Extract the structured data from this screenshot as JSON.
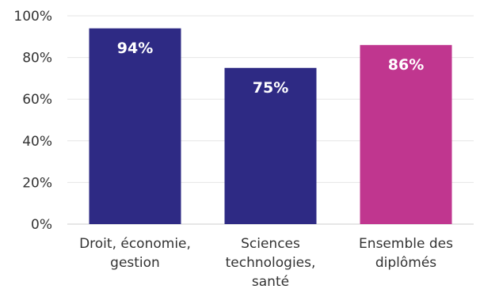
{
  "chart_data": {
    "type": "bar",
    "title": "",
    "xlabel": "",
    "ylabel": "",
    "ylim": [
      0,
      100
    ],
    "grid": true,
    "legend": "none",
    "y_ticks": [
      {
        "value": 0,
        "label": "0%"
      },
      {
        "value": 20,
        "label": "20%"
      },
      {
        "value": 40,
        "label": "40%"
      },
      {
        "value": 60,
        "label": "60%"
      },
      {
        "value": 80,
        "label": "80%"
      },
      {
        "value": 100,
        "label": "100%"
      }
    ],
    "categories": [
      [
        "Droit, économie,",
        "gestion"
      ],
      [
        "Sciences",
        "technologies,",
        "santé"
      ],
      [
        "Ensemble des",
        "diplômés"
      ]
    ],
    "values": [
      94,
      75,
      86
    ],
    "value_labels": [
      "94%",
      "75%",
      "86%"
    ],
    "bar_colors": [
      "#2e2a84",
      "#2e2a84",
      "#c0368f"
    ]
  }
}
